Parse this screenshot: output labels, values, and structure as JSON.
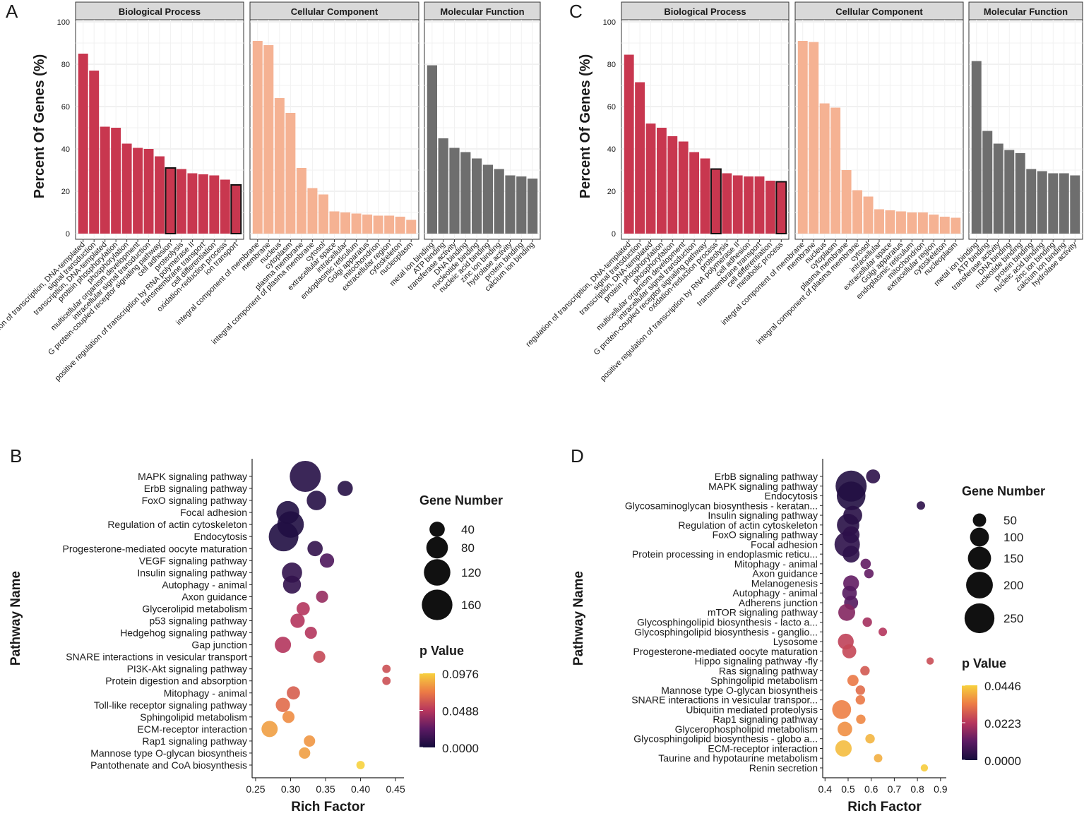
{
  "colors": {
    "bp": "#c8374f",
    "cc": "#f5b293",
    "mf": "#6e6e6e",
    "bubble_low": "#150c3c",
    "bubble_mid": "#b7365d",
    "bubble_high": "#f7d13d"
  },
  "chart_data": [
    {
      "panel": "A",
      "type": "bar",
      "ylabel": "Percent Of Genes (%)",
      "ylim": [
        0,
        100
      ],
      "yticks": [
        "0",
        "20",
        "40",
        "60",
        "80",
        "100"
      ],
      "facets": [
        {
          "title": "Biological Process",
          "color": "bp",
          "categories": [
            "regulation of transcription, DNA-templated",
            "signal transduction",
            "transcription, DNA-templated",
            "protein phosphorylation",
            "phosphorylation",
            "multicellular organism development",
            "intracellular signal transduction",
            "G protein-coupled receptor signaling pathway",
            "cell adhesion",
            "proteolysis",
            "positive regulation of transcription by RNA polymerase II",
            "transmembrane transport",
            "cell differentiation",
            "oxidation-reduction process",
            "ion transport"
          ],
          "values": [
            85,
            77,
            50.5,
            50,
            42.5,
            40.5,
            40,
            36.5,
            31,
            30.5,
            28.5,
            28,
            27.5,
            25.5,
            23
          ],
          "highlight": [
            8,
            14
          ]
        },
        {
          "title": "Cellular Component",
          "color": "cc",
          "categories": [
            "integral component of membrane",
            "membrane",
            "nucleus",
            "cytoplasm",
            "plasma membrane",
            "integral component of plasma membrane",
            "cytosol",
            "extracellular space",
            "intracellular",
            "endoplasmic reticulum",
            "Golgi apparatus",
            "mitochondrion",
            "extracellular region",
            "cytoskeleton",
            "nucleoplasm"
          ],
          "values": [
            91,
            89,
            64,
            57,
            31,
            21.5,
            18.5,
            10.5,
            10,
            9.5,
            9,
            8.5,
            8.5,
            8,
            6.5
          ],
          "highlight": []
        },
        {
          "title": "Molecular Function",
          "color": "mf",
          "categories": [
            "metal ion binding",
            "ATP binding",
            "transferase activity",
            "DNA binding",
            "nucleotide binding",
            "nucleic acid binding",
            "zinc ion binding",
            "hydrolase activity",
            "protein binding",
            "calcium ion binding"
          ],
          "values": [
            79.5,
            45,
            40.5,
            38.5,
            35.5,
            32.5,
            30.5,
            27.5,
            27,
            26
          ],
          "highlight": []
        }
      ]
    },
    {
      "panel": "C",
      "type": "bar",
      "ylabel": "Percent Of Genes (%)",
      "ylim": [
        0,
        100
      ],
      "yticks": [
        "0",
        "20",
        "40",
        "60",
        "80",
        "100"
      ],
      "facets": [
        {
          "title": "Biological Process",
          "color": "bp",
          "categories": [
            "regulation of transcription, DNA-templated",
            "signal transduction",
            "transcription, DNA-templated",
            "protein phosphorylation",
            "phosphorylation",
            "multicellular organism development",
            "intracellular signal transduction",
            "G protein-coupled receptor signaling pathway",
            "oxidation-reduction process",
            "proteolysis",
            "positive regulation of transcription by RNA polymerase II",
            "cell adhesion",
            "transmembrane transport",
            "cell differentiation",
            "metabolic process"
          ],
          "values": [
            84.5,
            71.5,
            52,
            50,
            46,
            43.5,
            38.5,
            35.5,
            30.5,
            28.5,
            27.5,
            27,
            27,
            25,
            24.5
          ],
          "highlight": [
            8,
            14
          ]
        },
        {
          "title": "Cellular Component",
          "color": "cc",
          "categories": [
            "integral component of membrane",
            "membrane",
            "nucleus",
            "cytoplasm",
            "plasma membrane",
            "integral component of plasma membrane",
            "cytosol",
            "intracellular",
            "extracellular space",
            "Golgi apparatus",
            "endoplasmic reticulum",
            "mitochondrion",
            "extracellular region",
            "cytoskeleton",
            "nucleoplasm"
          ],
          "values": [
            91,
            90.5,
            61.5,
            59.5,
            30,
            20.5,
            17.5,
            11.5,
            11,
            10.5,
            10,
            10,
            9,
            8,
            7.5
          ],
          "highlight": []
        },
        {
          "title": "Molecular Function",
          "color": "mf",
          "categories": [
            "metal ion binding",
            "ATP binding",
            "transferase activity",
            "DNA binding",
            "nucleotide binding",
            "protein binding",
            "nucleic acid binding",
            "zinc ion binding",
            "calcium ion binding",
            "hydrolase activity"
          ],
          "values": [
            81.5,
            48.5,
            42.5,
            39.5,
            38,
            30.5,
            29.5,
            28.5,
            28.5,
            27.5
          ],
          "highlight": []
        }
      ]
    },
    {
      "panel": "B",
      "type": "scatter",
      "xlabel": "Rich Factor",
      "ylabel": "Pathway Name",
      "xlim": [
        0.245,
        0.462
      ],
      "xticks": [
        0.25,
        0.3,
        0.35,
        0.4,
        0.45
      ],
      "xtick_labels": [
        "0.25",
        "0.30",
        "0.35",
        "0.40",
        "0.45"
      ],
      "size_legend": {
        "title": "Gene Number",
        "values": [
          40,
          80,
          120,
          160
        ],
        "labels": [
          "40",
          "80",
          "120",
          "160"
        ]
      },
      "color_legend": {
        "title": "p Value",
        "min": 0,
        "max": 0.0976,
        "labels": [
          "0.0976",
          "0.0488",
          "0.0000"
        ]
      },
      "pathways": [
        "MAPK signaling pathway",
        "ErbB signaling pathway",
        "FoxO signaling pathway",
        "Focal adhesion",
        "Regulation of actin cytoskeleton",
        "Endocytosis",
        "Progesterone-mediated oocyte maturation",
        "VEGF signaling pathway",
        "Insulin signaling pathway",
        "Autophagy - animal",
        "Axon guidance",
        "Glycerolipid metabolism",
        "p53 signaling pathway",
        "Hedgehog signaling pathway",
        "Gap junction",
        "SNARE interactions in vesicular transport",
        "PI3K-Akt signaling pathway",
        "Protein digestion and absorption",
        "Mitophagy - animal",
        "Toll-like receptor signaling pathway",
        "Sphingolipid metabolism",
        "ECM-receptor interaction",
        "Rap1 signaling pathway",
        "Mannose type O-glycan biosyntheis",
        "Pantothenate and CoA biosynthesis"
      ],
      "rich_factor": [
        0.321,
        0.378,
        0.337,
        0.296,
        0.3,
        0.29,
        0.335,
        0.352,
        0.302,
        0.302,
        0.345,
        0.318,
        0.31,
        0.329,
        0.289,
        0.341,
        0.437,
        0.437,
        0.304,
        0.289,
        0.297,
        0.27,
        0.327,
        0.32,
        0.4
      ],
      "gene_number": [
        165,
        40,
        65,
        90,
        120,
        150,
        40,
        35,
        70,
        55,
        25,
        30,
        35,
        25,
        45,
        25,
        12,
        12,
        30,
        35,
        25,
        45,
        22,
        22,
        12
      ],
      "p_value": [
        0.006,
        0.006,
        0.006,
        0.004,
        0.004,
        0.004,
        0.01,
        0.02,
        0.01,
        0.01,
        0.04,
        0.048,
        0.048,
        0.048,
        0.048,
        0.055,
        0.058,
        0.058,
        0.063,
        0.068,
        0.078,
        0.083,
        0.081,
        0.083,
        0.0976
      ]
    },
    {
      "panel": "D",
      "type": "scatter",
      "xlabel": "Rich Factor",
      "ylabel": "Pathway Name",
      "xlim": [
        0.39,
        0.925
      ],
      "xticks": [
        0.4,
        0.5,
        0.6,
        0.7,
        0.8,
        0.9
      ],
      "xtick_labels": [
        "0.4",
        "0.5",
        "0.6",
        "0.7",
        "0.8",
        "0.9"
      ],
      "size_legend": {
        "title": "Gene Number",
        "values": [
          50,
          100,
          150,
          200,
          250
        ],
        "labels": [
          "50",
          "100",
          "150",
          "200",
          "250"
        ]
      },
      "color_legend": {
        "title": "p Value",
        "min": 0,
        "max": 0.0446,
        "labels": [
          "0.0446",
          "0.0223",
          "0.0000"
        ]
      },
      "pathways": [
        "ErbB signaling pathway",
        "MAPK signaling pathway",
        "Endocytosis",
        "Glycosaminoglycan biosynthesis - keratan...",
        "Insulin signaling pathway",
        "Regulation of actin cytoskeleton",
        "FoxO signaling pathway",
        "Focal adhesion",
        "Protein processing in endoplasmic reticu...",
        "Mitophagy - animal",
        "Axon guidance",
        "Melanogenesis",
        "Autophagy - animal",
        "Adherens junction",
        "mTOR signaling pathway",
        "Glycosphingolipid biosynthesis - lacto a...",
        "Glycosphingolipid biosynthesis - ganglio...",
        "Lysosome",
        "Progesterone-mediated oocyte maturation",
        "Hippo signaling pathway -fly",
        "Ras signaling pathway",
        "Sphingolipid metabolism",
        "Mannose type O-glycan biosyntheis",
        "SNARE interactions in vesicular transpor...",
        "Ubiquitin mediated proteolysis",
        "Rap1 signaling pathway",
        "Glycerophospholipid metabolism",
        "Glycosphingolipid biosynthesis - globo a...",
        "ECM-receptor interaction",
        "Taurine and hypotaurine metabolism",
        "Renin secretion"
      ],
      "rich_factor": [
        0.608,
        0.513,
        0.513,
        0.815,
        0.52,
        0.5,
        0.513,
        0.496,
        0.513,
        0.576,
        0.59,
        0.513,
        0.506,
        0.513,
        0.494,
        0.583,
        0.65,
        0.49,
        0.505,
        0.855,
        0.573,
        0.521,
        0.553,
        0.553,
        0.472,
        0.555,
        0.486,
        0.595,
        0.48,
        0.63,
        0.83
      ],
      "gene_number": [
        55,
        270,
        230,
        20,
        100,
        140,
        80,
        180,
        80,
        30,
        25,
        70,
        60,
        55,
        80,
        25,
        20,
        70,
        55,
        15,
        25,
        35,
        25,
        25,
        100,
        25,
        60,
        25,
        75,
        20,
        15
      ],
      "p_value": [
        0.004,
        0.002,
        0.002,
        0.004,
        0.003,
        0.003,
        0.004,
        0.004,
        0.004,
        0.012,
        0.012,
        0.012,
        0.01,
        0.01,
        0.016,
        0.02,
        0.022,
        0.024,
        0.025,
        0.026,
        0.028,
        0.033,
        0.031,
        0.033,
        0.034,
        0.035,
        0.036,
        0.041,
        0.042,
        0.04,
        0.044
      ]
    }
  ],
  "panel_letters": {
    "a": "A",
    "b": "B",
    "c": "C",
    "d": "D"
  }
}
